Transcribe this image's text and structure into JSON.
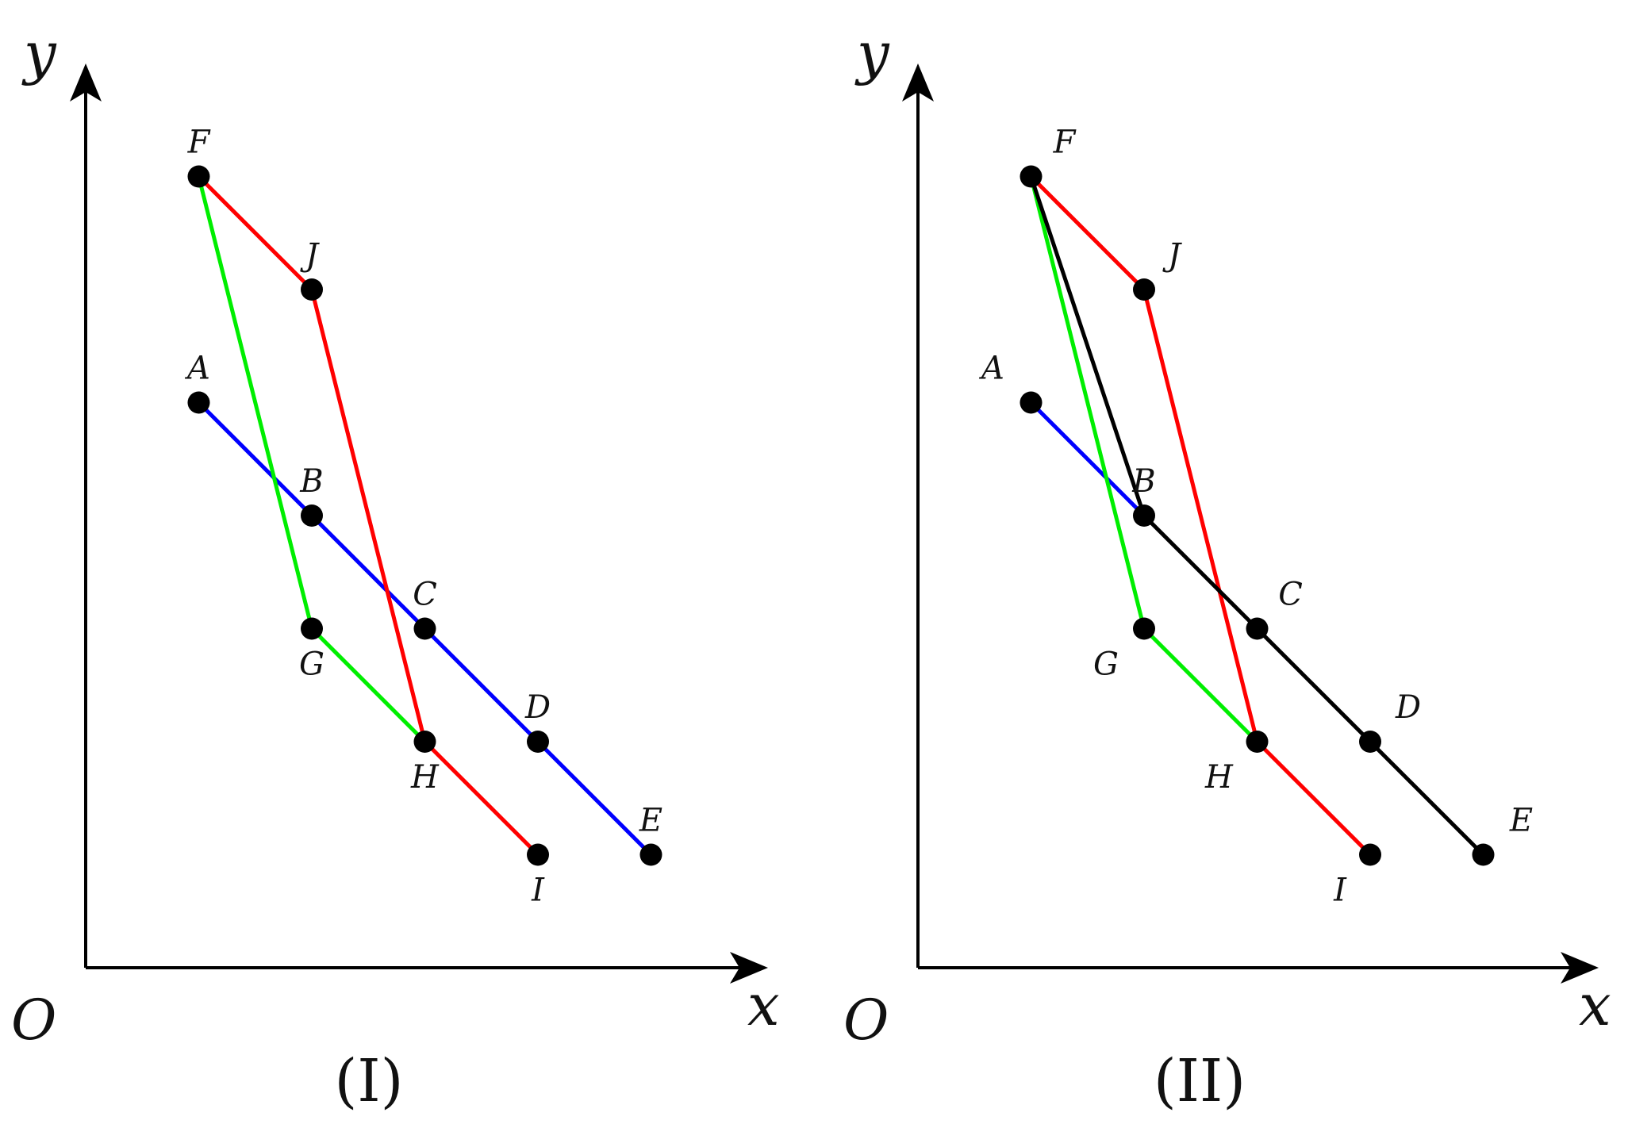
{
  "colors": {
    "red": "#ff0000",
    "green": "#00ee00",
    "blue": "#0000ff",
    "black": "#000000"
  },
  "panels": [
    {
      "id": "panel-1",
      "caption": "(I)",
      "axis_x_label": "x",
      "axis_y_label": "y",
      "origin_label": "O",
      "points": [
        {
          "name": "A",
          "x": 1,
          "y": 5
        },
        {
          "name": "B",
          "x": 2,
          "y": 4
        },
        {
          "name": "C",
          "x": 3,
          "y": 3
        },
        {
          "name": "D",
          "x": 4,
          "y": 2
        },
        {
          "name": "E",
          "x": 5,
          "y": 1
        },
        {
          "name": "F",
          "x": 1,
          "y": 7
        },
        {
          "name": "G",
          "x": 2,
          "y": 3
        },
        {
          "name": "H",
          "x": 3,
          "y": 2
        },
        {
          "name": "I",
          "x": 4,
          "y": 1
        },
        {
          "name": "J",
          "x": 2,
          "y": 6
        }
      ],
      "paths": [
        {
          "color": "blue",
          "points": [
            "A",
            "B",
            "C",
            "D",
            "E"
          ]
        },
        {
          "color": "green",
          "points": [
            "F",
            "G",
            "H"
          ]
        },
        {
          "color": "red",
          "points": [
            "F",
            "J",
            "H",
            "I"
          ]
        }
      ]
    },
    {
      "id": "panel-2",
      "caption": "(II)",
      "axis_x_label": "x",
      "axis_y_label": "y",
      "origin_label": "O",
      "points": [
        {
          "name": "A",
          "x": 1,
          "y": 5
        },
        {
          "name": "B",
          "x": 2,
          "y": 4
        },
        {
          "name": "C",
          "x": 3,
          "y": 3
        },
        {
          "name": "D",
          "x": 4,
          "y": 2
        },
        {
          "name": "E",
          "x": 5,
          "y": 1
        },
        {
          "name": "F",
          "x": 1,
          "y": 7
        },
        {
          "name": "G",
          "x": 2,
          "y": 3
        },
        {
          "name": "H",
          "x": 3,
          "y": 2
        },
        {
          "name": "I",
          "x": 4,
          "y": 1
        },
        {
          "name": "J",
          "x": 2,
          "y": 6
        }
      ],
      "paths": [
        {
          "color": "blue",
          "points": [
            "A",
            "B"
          ]
        },
        {
          "color": "green",
          "points": [
            "F",
            "G",
            "H"
          ]
        },
        {
          "color": "red",
          "points": [
            "F",
            "J",
            "H",
            "I"
          ]
        },
        {
          "color": "black",
          "points": [
            "F",
            "B",
            "C",
            "D",
            "E"
          ]
        }
      ]
    }
  ]
}
